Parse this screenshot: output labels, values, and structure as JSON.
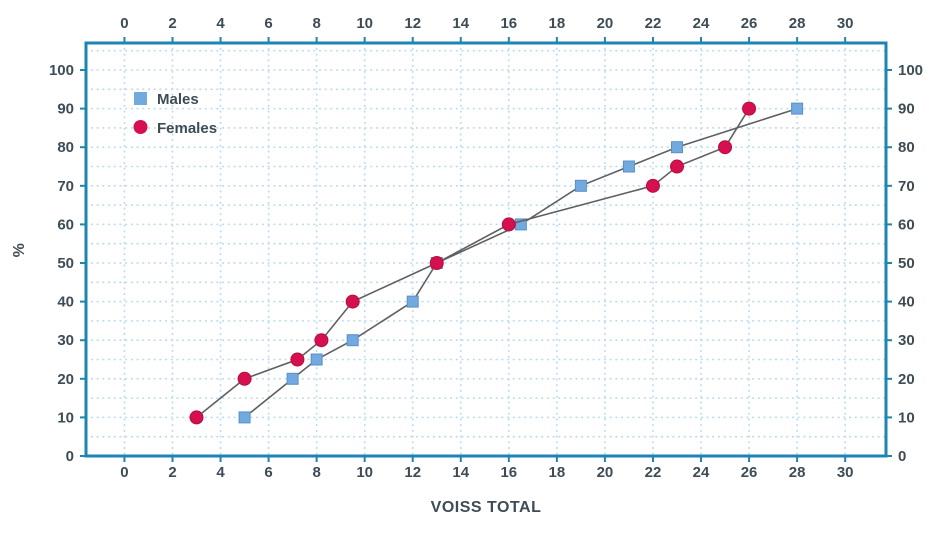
{
  "chart_data": {
    "type": "line",
    "title": "",
    "xlabel": "VOISS TOTAL",
    "ylabel": "%",
    "legend_position": "top-left-inside",
    "grid_on": true,
    "x_ticks": [
      0,
      2,
      4,
      6,
      8,
      10,
      12,
      14,
      16,
      18,
      20,
      22,
      24,
      26,
      28,
      30
    ],
    "y_ticks": [
      0,
      10,
      20,
      30,
      40,
      50,
      60,
      70,
      80,
      90,
      100
    ],
    "xlim": [
      -1.6,
      31.7
    ],
    "ylim": [
      0,
      107
    ],
    "frame_color": "#1d86b0",
    "grid_color": "#bedcef",
    "line_color": "#5f6062",
    "text_color": "#3e4c56",
    "grid_x_step": 2,
    "grid_y_step": 5,
    "series": [
      {
        "name": "Males",
        "marker": "square",
        "color": "#72a9de",
        "edge_color": "#5890c9",
        "x": [
          5,
          7,
          8,
          9.5,
          12,
          13,
          16.5,
          19,
          21,
          23,
          28
        ],
        "y": [
          10,
          20,
          25,
          30,
          40,
          50,
          60,
          70,
          75,
          80,
          90
        ]
      },
      {
        "name": "Females",
        "marker": "circle",
        "color": "#d6104f",
        "edge_color": "#b50d42",
        "x": [
          3,
          5,
          7.2,
          8.2,
          9.5,
          13,
          16,
          22,
          23,
          25,
          26
        ],
        "y": [
          10,
          20,
          25,
          30,
          40,
          50,
          60,
          70,
          75,
          80,
          90
        ]
      }
    ]
  }
}
